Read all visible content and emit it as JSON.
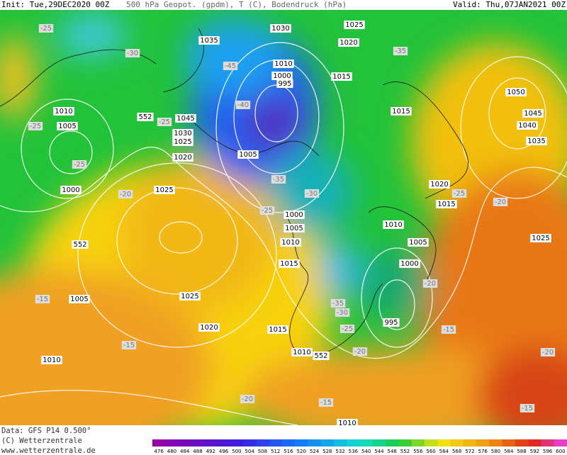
{
  "header": {
    "init": "Init: Tue,29DEC2020 00Z",
    "title": "500 hPa Geopot. (gpdm), T (C), Bodendruck (hPa)",
    "valid": "Valid: Thu,07JAN2021 00Z"
  },
  "footer": {
    "data": "Data: GFS P14 0.500°",
    "copyright": "(C) Wetterzentrale",
    "url": "www.wetterzentrale.de"
  },
  "colorbar": {
    "labels": [
      476,
      480,
      484,
      488,
      492,
      496,
      500,
      504,
      508,
      512,
      516,
      520,
      524,
      528,
      532,
      536,
      540,
      544,
      548,
      552,
      556,
      560,
      564,
      568,
      572,
      576,
      580,
      584,
      588,
      592,
      596,
      600
    ]
  },
  "map": {
    "pressure_labels": [
      "1035",
      "1030",
      "1025",
      "1020",
      "1010",
      "1000",
      "995",
      "1015",
      "1015",
      "1050",
      "1045",
      "1040",
      "1035",
      "1010",
      "1005",
      "552",
      "1045",
      "1030",
      "1025",
      "1020",
      "1005",
      "1000",
      "1025",
      "1020",
      "1015",
      "1000",
      "1005",
      "1010",
      "1010",
      "1005",
      "552",
      "1025",
      "1015",
      "1000",
      "1005",
      "1025",
      "995",
      "1020",
      "1015",
      "1010",
      "552",
      "1010",
      "1010"
    ],
    "temperature_labels": [
      "-25",
      "-30",
      "-35",
      "-45",
      "-40",
      "-25",
      "-25",
      "-25",
      "-35",
      "-30",
      "-20",
      "-25",
      "-20",
      "-25",
      "-20",
      "-15",
      "-35",
      "-30",
      "-25",
      "-15",
      "-15",
      "-20",
      "-20",
      "-20",
      "-15",
      "-15"
    ]
  }
}
